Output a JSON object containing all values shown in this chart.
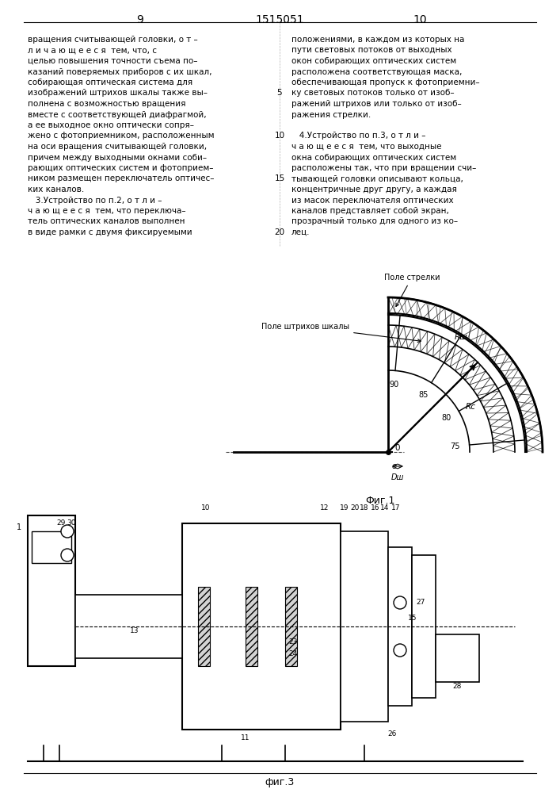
{
  "page_width": 7.07,
  "page_height": 10.0,
  "bg_color": "#ffffff",
  "page_number_left": "9",
  "page_number_center": "1515051",
  "page_number_right": "10",
  "left_column_text": [
    "вращения считывающей головки, о т –",
    "л и ч а ю щ е е с я  тем, что, с",
    "целью повышения точности съема по–",
    "казаний поверяемых приборов с их шкал,",
    "собирающая оптическая система для",
    "изображений штрихов шкалы также вы–",
    "полнена с возможностью вращения",
    "вместе с соответствующей диафрагмой,",
    "а ее выходное окно оптически сопря–",
    "жено с фотоприемником, расположенным",
    "на оси вращения считывающей головки,",
    "причем между выходными окнами соби–",
    "рающих оптических систем и фотоприем–",
    "ником размещен переключатель оптичес–",
    "ких каналов.",
    "   3.Устройство по п.2, о т л и –",
    "ч а ю щ е е с я  тем, что переключа–",
    "тель оптических каналов выполнен",
    "в виде рамки с двумя фиксируемыми"
  ],
  "right_column_text": [
    "положениями, в каждом из которых на",
    "пути световых потоков от выходных",
    "окон собирающих оптических систем",
    "расположена соответствующая маска,",
    "обеспечивающая пропуск к фотоприемни–",
    "ку световых потоков только от изоб–",
    "ражений штрихов или только от изоб–",
    "ражения стрелки.",
    "",
    "   4.Устройство по п.3, о т л и –",
    "ч а ю щ е е с я  тем, что выходные",
    "окна собирающих оптических систем",
    "расположены так, что при вращении счи–",
    "тывающей головки описывают кольца,",
    "концентричные друг другу, а каждая",
    "из масок переключателя оптических",
    "каналов представляет собой экран,",
    "прозрачный только для одного из ко–",
    "лец."
  ],
  "line_numbers": {
    "5": 6,
    "10": 9,
    "15": 13,
    "20": 18
  },
  "fig1_caption": "Фиг.1",
  "fig3_caption": "фиг.3",
  "fig1_label_arrow_field": "Поле стрелки",
  "fig1_label_stroke_field": "Поле штрихов шкалы",
  "fig1_scale_values": [
    "75",
    "80",
    "85",
    "90"
  ],
  "fig1_Rsh_label": "Rш",
  "fig1_Rc_label": "Rc",
  "fig1_O_label": "0",
  "fig1_e_label": "e",
  "fig1_Dsh_label": "Dш"
}
